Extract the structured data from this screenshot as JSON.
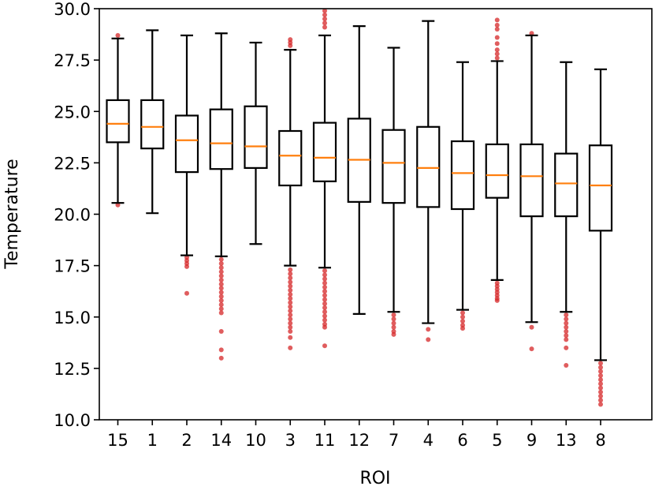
{
  "chart_data": {
    "type": "box",
    "xlabel": "ROI",
    "ylabel": "Temperature",
    "ylim": [
      10.0,
      30.0
    ],
    "yticks": [
      "10.0",
      "12.5",
      "15.0",
      "17.5",
      "20.0",
      "22.5",
      "25.0",
      "27.5",
      "30.0"
    ],
    "grid": false,
    "categories": [
      "15",
      "1",
      "2",
      "14",
      "10",
      "3",
      "11",
      "12",
      "7",
      "4",
      "6",
      "5",
      "9",
      "13",
      "8"
    ],
    "boxes": [
      {
        "category": "15",
        "whisker_low": 20.55,
        "q1": 23.5,
        "median": 24.4,
        "q3": 25.55,
        "whisker_high": 28.55,
        "outliers": [
          20.45,
          28.7
        ]
      },
      {
        "category": "1",
        "whisker_low": 20.05,
        "q1": 23.2,
        "median": 24.25,
        "q3": 25.55,
        "whisker_high": 28.95,
        "outliers": []
      },
      {
        "category": "2",
        "whisker_low": 18.0,
        "q1": 22.05,
        "median": 23.6,
        "q3": 24.8,
        "whisker_high": 28.7,
        "outliers": [
          17.9,
          17.75,
          17.6,
          17.45,
          16.15
        ]
      },
      {
        "category": "14",
        "whisker_low": 17.95,
        "q1": 22.2,
        "median": 23.45,
        "q3": 25.1,
        "whisker_high": 28.8,
        "outliers": [
          17.8,
          17.6,
          17.4,
          17.2,
          17.0,
          16.8,
          16.6,
          16.4,
          16.2,
          16.0,
          15.8,
          15.6,
          15.4,
          15.2,
          14.3,
          13.4,
          13.0
        ]
      },
      {
        "category": "10",
        "whisker_low": 18.55,
        "q1": 22.25,
        "median": 23.3,
        "q3": 25.25,
        "whisker_high": 28.35,
        "outliers": []
      },
      {
        "category": "3",
        "whisker_low": 17.5,
        "q1": 21.4,
        "median": 22.85,
        "q3": 24.05,
        "whisker_high": 28.0,
        "outliers": [
          28.2,
          28.35,
          28.5,
          17.3,
          17.1,
          16.9,
          16.7,
          16.5,
          16.3,
          16.1,
          15.9,
          15.7,
          15.5,
          15.3,
          15.1,
          14.9,
          14.7,
          14.5,
          14.3,
          14.0,
          13.5
        ]
      },
      {
        "category": "11",
        "whisker_low": 17.4,
        "q1": 21.6,
        "median": 22.75,
        "q3": 24.45,
        "whisker_high": 28.7,
        "outliers": [
          29.1,
          29.3,
          29.5,
          29.7,
          29.9,
          17.25,
          17.05,
          16.85,
          16.65,
          16.45,
          16.25,
          16.05,
          15.85,
          15.65,
          15.45,
          15.25,
          15.05,
          14.85,
          14.65,
          14.5,
          13.6
        ]
      },
      {
        "category": "12",
        "whisker_low": 15.15,
        "q1": 20.6,
        "median": 22.65,
        "q3": 24.65,
        "whisker_high": 29.15,
        "outliers": []
      },
      {
        "category": "7",
        "whisker_low": 15.25,
        "q1": 20.55,
        "median": 22.5,
        "q3": 24.1,
        "whisker_high": 28.1,
        "outliers": [
          15.1,
          14.9,
          14.7,
          14.5,
          14.3,
          14.15
        ]
      },
      {
        "category": "4",
        "whisker_low": 14.7,
        "q1": 20.35,
        "median": 22.25,
        "q3": 24.25,
        "whisker_high": 29.4,
        "outliers": [
          14.4,
          13.9
        ]
      },
      {
        "category": "6",
        "whisker_low": 15.35,
        "q1": 20.25,
        "median": 22.0,
        "q3": 23.55,
        "whisker_high": 27.4,
        "outliers": [
          15.2,
          15.0,
          14.8,
          14.6,
          14.45
        ]
      },
      {
        "category": "5",
        "whisker_low": 16.8,
        "q1": 20.8,
        "median": 21.9,
        "q3": 23.4,
        "whisker_high": 27.45,
        "outliers": [
          27.6,
          27.8,
          28.0,
          28.3,
          28.6,
          29.0,
          29.2,
          29.45,
          16.65,
          16.5,
          16.35,
          16.2,
          16.05,
          15.9,
          15.8
        ]
      },
      {
        "category": "9",
        "whisker_low": 14.75,
        "q1": 19.9,
        "median": 21.85,
        "q3": 23.4,
        "whisker_high": 28.7,
        "outliers": [
          28.8,
          14.5,
          13.45
        ]
      },
      {
        "category": "13",
        "whisker_low": 15.25,
        "q1": 19.9,
        "median": 21.5,
        "q3": 22.95,
        "whisker_high": 27.4,
        "outliers": [
          15.1,
          14.9,
          14.7,
          14.5,
          14.3,
          14.1,
          13.9,
          13.5,
          12.65
        ]
      },
      {
        "category": "8",
        "whisker_low": 12.9,
        "q1": 19.2,
        "median": 21.4,
        "q3": 23.35,
        "whisker_high": 27.05,
        "outliers": [
          12.75,
          12.55,
          12.35,
          12.15,
          11.95,
          11.75,
          11.55,
          11.35,
          11.15,
          10.95,
          10.75
        ]
      }
    ],
    "colors": {
      "box": "#000000",
      "median": "#ff7f0e",
      "outlier": "#d62728"
    }
  }
}
